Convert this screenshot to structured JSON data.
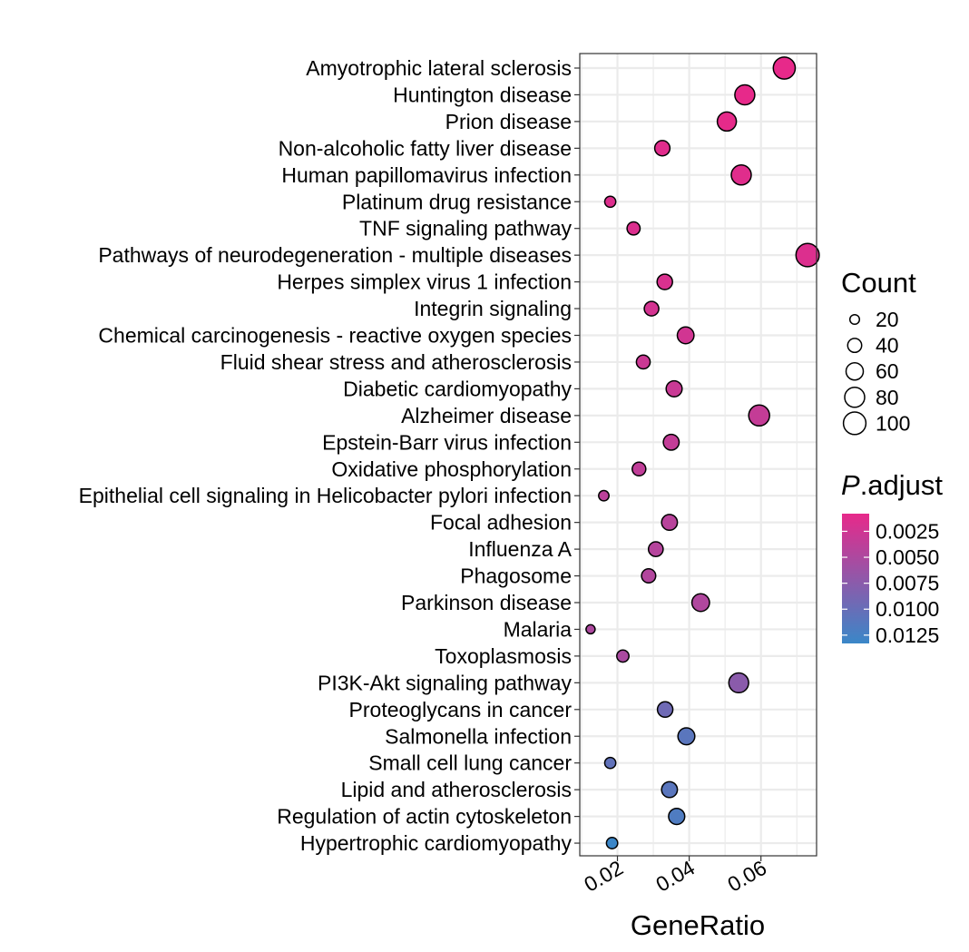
{
  "chart_data": {
    "type": "scatter",
    "xlabel": "GeneRatio",
    "ylabel": "",
    "xlim": [
      0.0095,
      0.0755
    ],
    "x_ticks": [
      0.02,
      0.04,
      0.06
    ],
    "x_tick_labels": [
      "0.02",
      "0.04",
      "0.06"
    ],
    "grid": true,
    "categories": [
      "Amyotrophic lateral sclerosis",
      "Huntington disease",
      "Prion disease",
      "Non-alcoholic fatty liver disease",
      "Human papillomavirus infection",
      "Platinum drug resistance",
      "TNF signaling pathway",
      "Pathways of neurodegeneration - multiple diseases",
      "Herpes simplex virus 1 infection",
      "Integrin signaling",
      "Chemical carcinogenesis - reactive oxygen species",
      "Fluid shear stress and atherosclerosis",
      "Diabetic cardiomyopathy",
      "Alzheimer disease",
      "Epstein-Barr virus infection",
      "Oxidative phosphorylation",
      "Epithelial cell signaling in Helicobacter pylori infection",
      "Focal adhesion",
      "Influenza A",
      "Phagosome",
      "Parkinson disease",
      "Malaria",
      "Toxoplasmosis",
      "PI3K-Akt signaling pathway",
      "Proteoglycans in cancer",
      "Salmonella infection",
      "Small cell lung cancer",
      "Lipid and atherosclerosis",
      "Regulation of actin cytoskeleton",
      "Hypertrophic cardiomyopathy"
    ],
    "gene_ratio": [
      0.0665,
      0.0555,
      0.0505,
      0.0325,
      0.0545,
      0.018,
      0.0245,
      0.073,
      0.0332,
      0.0295,
      0.039,
      0.0272,
      0.0358,
      0.0595,
      0.035,
      0.026,
      0.0162,
      0.0345,
      0.0307,
      0.0287,
      0.0432,
      0.0125,
      0.0215,
      0.0538,
      0.0333,
      0.0392,
      0.018,
      0.0345,
      0.0365,
      0.0185
    ],
    "count": [
      95,
      80,
      73,
      47,
      79,
      26,
      35,
      106,
      48,
      43,
      56,
      39,
      52,
      86,
      51,
      38,
      23,
      50,
      44,
      41,
      62,
      18,
      31,
      78,
      48,
      57,
      26,
      50,
      53,
      27
    ],
    "p_adjust": [
      0.0008,
      0.0008,
      0.0009,
      0.0012,
      0.0013,
      0.0015,
      0.0016,
      0.0016,
      0.0018,
      0.0022,
      0.0024,
      0.0028,
      0.003,
      0.0033,
      0.0034,
      0.0036,
      0.004,
      0.0042,
      0.0044,
      0.0046,
      0.0048,
      0.005,
      0.0052,
      0.0075,
      0.0095,
      0.011,
      0.0105,
      0.011,
      0.0118,
      0.0132
    ],
    "size_legend": {
      "title": "Count",
      "values": [
        20,
        40,
        60,
        80,
        100
      ],
      "labels": [
        "20",
        "40",
        "60",
        "80",
        "100"
      ]
    },
    "color_legend": {
      "title_italic": "P",
      "title_rest": ".adjust",
      "range": [
        0.0008,
        0.0133
      ],
      "ticks": [
        0.0025,
        0.005,
        0.0075,
        0.01,
        0.0125
      ],
      "tick_labels": [
        "0.0025",
        "0.0050",
        "0.0075",
        "0.0100",
        "0.0125"
      ],
      "low_color": "#e7298a",
      "high_color": "#3a87c8"
    },
    "colors": {
      "panel_border": "#333333",
      "grid": "#ebebeb",
      "point_stroke": "#000000",
      "text": "#000000"
    }
  }
}
